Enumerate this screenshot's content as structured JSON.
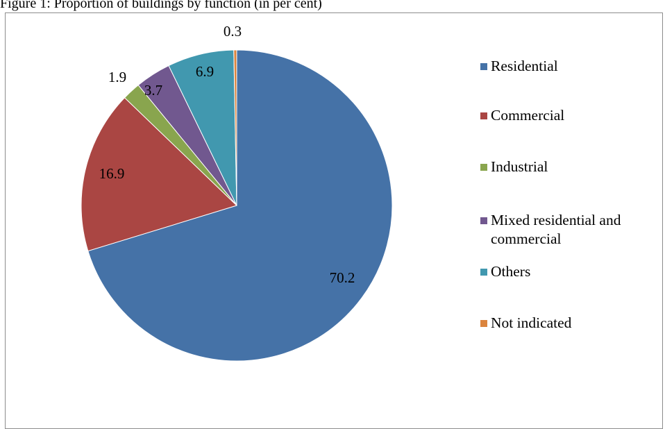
{
  "caption": "Figure 1: Proportion of buildings by function (in per cent)",
  "chart_data": {
    "type": "pie",
    "title": "",
    "slices": [
      {
        "label": "Residential",
        "value": 70.2,
        "color": "#4572A7"
      },
      {
        "label": "Commercial",
        "value": 16.9,
        "color": "#AA4643"
      },
      {
        "label": "Industrial",
        "value": 1.9,
        "color": "#89A54E"
      },
      {
        "label": "Mixed residential and commercial",
        "value": 3.7,
        "color": "#71588F"
      },
      {
        "label": "Others",
        "value": 6.9,
        "color": "#4198AF"
      },
      {
        "label": "Not indicated",
        "value": 0.3,
        "color": "#DB843D"
      }
    ],
    "data_labels": [
      "70.2",
      "16.9",
      "1.9",
      "3.7",
      "6.9",
      "0.3"
    ],
    "legend_position": "right"
  }
}
